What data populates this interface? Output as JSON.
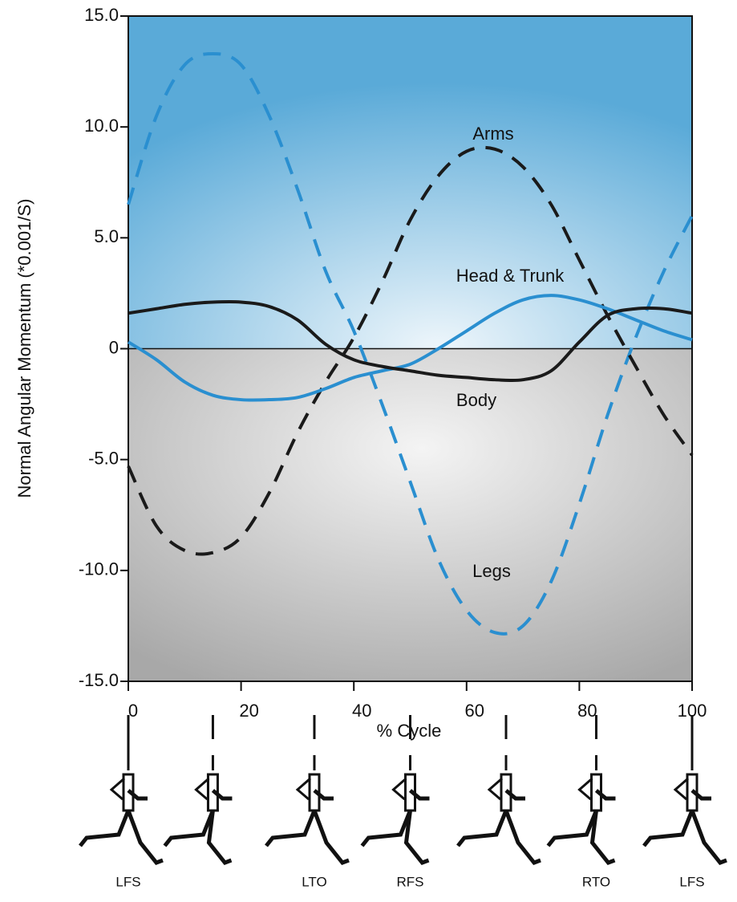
{
  "chart_data": {
    "type": "line",
    "xlabel": "% Cycle",
    "ylabel": "Normal Angular Momentum (*0.001/S)",
    "x": [
      0,
      5,
      10,
      15,
      20,
      25,
      30,
      35,
      40,
      45,
      50,
      55,
      60,
      65,
      70,
      75,
      80,
      85,
      90,
      95,
      100
    ],
    "series": [
      {
        "name": "Legs",
        "color": "#2a8fd0",
        "dash": true,
        "values": [
          6.5,
          10.5,
          12.8,
          13.3,
          12.8,
          10.5,
          7.2,
          3.5,
          0.8,
          -2.5,
          -6,
          -9.5,
          -11.8,
          -12.8,
          -12.5,
          -10.5,
          -7,
          -3,
          0.5,
          3.5,
          6
        ]
      },
      {
        "name": "Arms",
        "color": "#1a1a1a",
        "dash": true,
        "values": [
          -5.3,
          -8,
          -9.1,
          -9.2,
          -8.5,
          -6.5,
          -3.8,
          -1.5,
          0.5,
          3,
          5.8,
          7.8,
          8.9,
          9,
          8.2,
          6.5,
          4,
          1.5,
          -0.8,
          -3,
          -4.8
        ]
      },
      {
        "name": "Head & Trunk",
        "color": "#2a8fd0",
        "dash": false,
        "values": [
          0.3,
          -0.5,
          -1.5,
          -2.1,
          -2.3,
          -2.3,
          -2.2,
          -1.8,
          -1.3,
          -1.0,
          -0.7,
          0.0,
          0.8,
          1.6,
          2.2,
          2.4,
          2.2,
          1.8,
          1.3,
          0.8,
          0.4
        ]
      },
      {
        "name": "Body",
        "color": "#1a1a1a",
        "dash": false,
        "values": [
          1.6,
          1.8,
          2.0,
          2.1,
          2.1,
          1.9,
          1.3,
          0.2,
          -0.5,
          -0.8,
          -1.0,
          -1.2,
          -1.3,
          -1.4,
          -1.4,
          -1.0,
          0.3,
          1.5,
          1.8,
          1.8,
          1.6
        ]
      }
    ],
    "xlim": [
      0,
      100
    ],
    "xticks": [
      0,
      20,
      40,
      60,
      80,
      100
    ],
    "ylim": [
      -15,
      15
    ],
    "yticks": [
      {
        "value": 15,
        "label": "15.0"
      },
      {
        "value": 10,
        "label": "10.0"
      },
      {
        "value": 5,
        "label": "5.0"
      },
      0,
      {
        "value": -5,
        "label": "-5.0"
      },
      {
        "value": -10,
        "label": "-10.0"
      },
      {
        "value": -15,
        "label": "-15.0"
      }
    ],
    "events": [
      {
        "x": 0,
        "label": "LFS"
      },
      {
        "x": 15,
        "label": null
      },
      {
        "x": 33,
        "label": "LTO"
      },
      {
        "x": 50,
        "label": "RFS"
      },
      {
        "x": 67,
        "label": null
      },
      {
        "x": 83,
        "label": "RTO"
      },
      {
        "x": 100,
        "label": "LFS"
      }
    ]
  }
}
